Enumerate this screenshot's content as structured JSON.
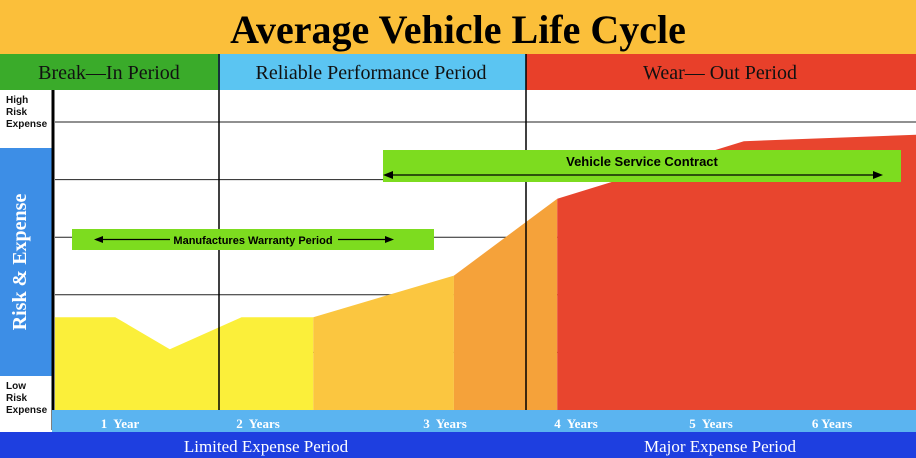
{
  "title": "Average Vehicle Life Cycle",
  "periods": [
    {
      "label": "Break—In Period",
      "color": "#3aab2a"
    },
    {
      "label": "Reliable Performance Period",
      "color": "#5bc5f2"
    },
    {
      "label": "Wear— Out Period",
      "color": "#e8402a"
    }
  ],
  "y_axis": {
    "label": "Risk & Expense",
    "high_label": [
      "High",
      "Risk",
      "Expense"
    ],
    "low_label": [
      "Low",
      "Risk",
      "Expense"
    ]
  },
  "bottom_bands": [
    {
      "label": "Limited Expense Period"
    },
    {
      "label": "Major Expense Period"
    }
  ],
  "annotations": {
    "warranty": "Manufactures Warranty Period",
    "service_contract": "Vehicle Service Contract"
  },
  "colors": {
    "title_bg": "#fbbf3a",
    "axis_band": "#3d8ee6",
    "bottom_band": "#1e3fe0",
    "tick_band": "#5bb4f0",
    "yellow": "#fbef3a",
    "amber": "#fbc640",
    "orange": "#f5a23a",
    "red": "#e8452e",
    "green": "#7ddc1f"
  },
  "chart_data": {
    "type": "area",
    "title": "Average Vehicle Life Cycle",
    "ylabel": "Risk & Expense",
    "x_tick_labels": [
      "1  Year",
      "2  Years",
      "3  Years",
      "4  Years",
      "5  Years",
      "6 Years"
    ],
    "series": [
      {
        "color": "#fbef3a",
        "points": [
          [
            0.0,
            0.29
          ],
          [
            0.42,
            0.29
          ],
          [
            0.8,
            0.19
          ],
          [
            1.3,
            0.29
          ],
          [
            1.8,
            0.29
          ]
        ]
      },
      {
        "color": "#fbc640",
        "points": [
          [
            1.8,
            0.29
          ],
          [
            2.78,
            0.42
          ]
        ]
      },
      {
        "color": "#f5a23a",
        "points": [
          [
            2.78,
            0.42
          ],
          [
            3.5,
            0.66
          ]
        ]
      },
      {
        "color": "#e8452e",
        "points": [
          [
            3.5,
            0.66
          ],
          [
            4.8,
            0.84
          ],
          [
            6.0,
            0.86
          ]
        ]
      }
    ],
    "xlim": [
      0,
      6
    ],
    "ylim": [
      0,
      1
    ]
  }
}
